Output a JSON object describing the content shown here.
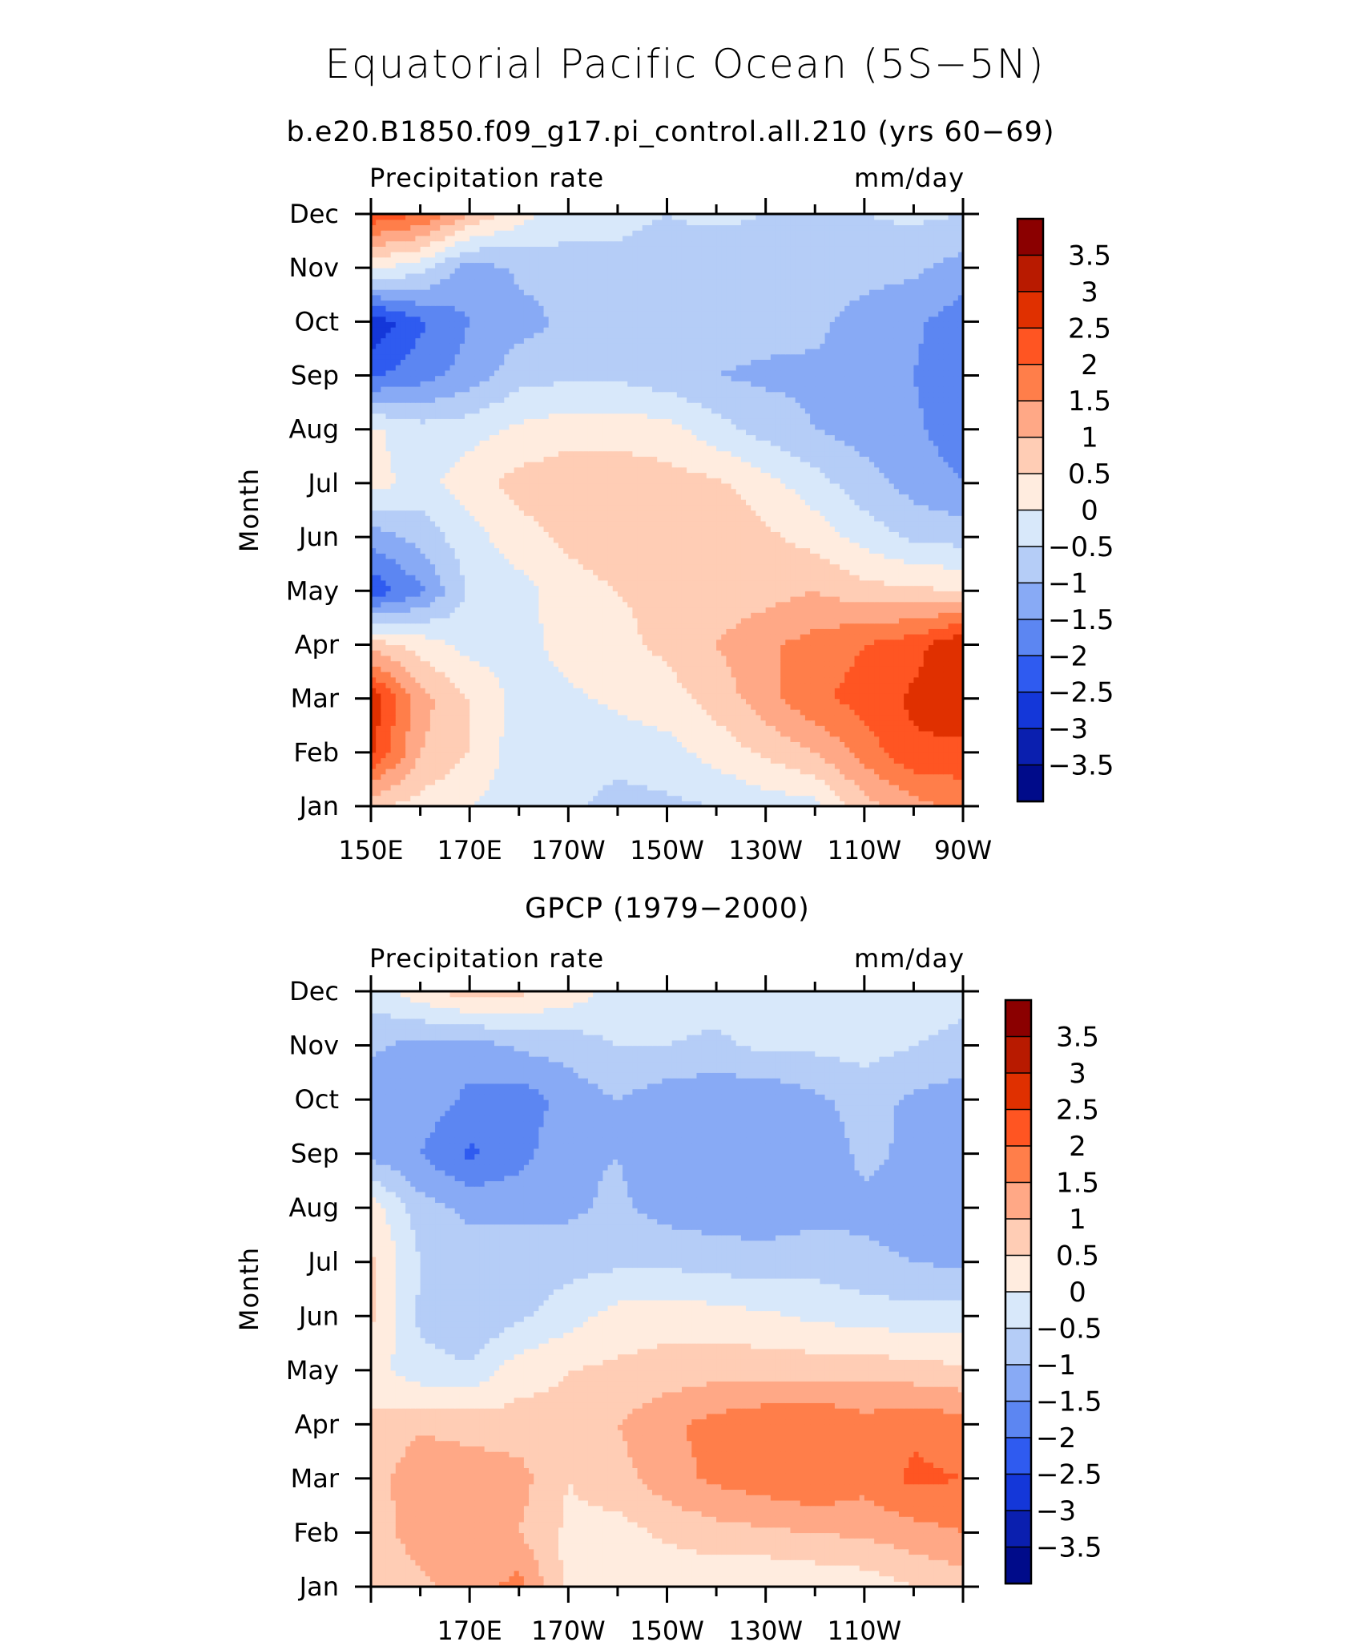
{
  "figure": {
    "title": "Equatorial Pacific Ocean (5S−5N)"
  },
  "colorbar": {
    "levels": [
      "3.5",
      "3",
      "2.5",
      "2",
      "1.5",
      "1",
      "0.5",
      "0",
      "−0.5",
      "−1",
      "−1.5",
      "−2",
      "−2.5",
      "−3",
      "−3.5"
    ],
    "colors": [
      "#8B0000",
      "#B81A00",
      "#E03000",
      "#FF5522",
      "#FF7E4A",
      "#FFA886",
      "#FFCDB5",
      "#FFECDF",
      "#D8E8FA",
      "#B5CDF7",
      "#88AAF5",
      "#5C86F2",
      "#2F5BF0",
      "#1437D9",
      "#0A1FAF",
      "#000B8A"
    ]
  },
  "chart_data": [
    {
      "type": "heatmap",
      "title": "b.e20.B1850.f09_g17.pi_control.all.210 (yrs 60−69)",
      "left_label": "Precipitation rate",
      "right_label": "mm/day",
      "ylabel": "Month",
      "x_ticks": [
        "150E",
        "170E",
        "170W",
        "150W",
        "130W",
        "110W",
        "90W"
      ],
      "y_ticks": [
        "Jan",
        "Feb",
        "Mar",
        "Apr",
        "May",
        "Jun",
        "Jul",
        "Aug",
        "Sep",
        "Oct",
        "Nov",
        "Dec"
      ],
      "xlim": [
        150,
        270
      ],
      "ylim": [
        1,
        12
      ],
      "z_grid_rows_jan_to_dec_cols_150E_to_90W_step_10deg": [
        [
          0.6,
          0.3,
          0.0,
          -0.3,
          -0.4,
          -0.7,
          -0.6,
          -0.5,
          -0.3,
          -0.2,
          0.8,
          1.3,
          1.7
        ],
        [
          2.6,
          1.0,
          0.5,
          -0.3,
          -0.3,
          -0.3,
          -0.2,
          0.2,
          0.6,
          1.0,
          1.7,
          2.4,
          2.3
        ],
        [
          2.9,
          1.2,
          0.5,
          -0.2,
          -0.1,
          0.1,
          0.3,
          0.7,
          1.3,
          1.9,
          2.2,
          2.6,
          3.0
        ],
        [
          0.8,
          0.3,
          -0.2,
          -0.2,
          0.2,
          0.4,
          0.6,
          1.0,
          1.4,
          1.7,
          2.0,
          2.3,
          3.0
        ],
        [
          -2.4,
          -1.6,
          -0.4,
          -0.2,
          0.3,
          0.5,
          0.6,
          0.7,
          0.8,
          1.0,
          0.7,
          0.6,
          0.5
        ],
        [
          -1.3,
          -0.8,
          -0.2,
          0.3,
          0.6,
          0.8,
          0.9,
          0.9,
          0.6,
          0.3,
          -0.2,
          -0.6,
          -0.7
        ],
        [
          0.2,
          -0.2,
          0.3,
          0.7,
          0.8,
          0.8,
          0.7,
          0.6,
          0.2,
          -0.3,
          -0.8,
          -1.2,
          -1.5
        ],
        [
          0.1,
          -0.3,
          -0.2,
          0.1,
          0.3,
          0.3,
          0.2,
          -0.3,
          -0.7,
          -1.0,
          -1.2,
          -1.4,
          -1.8
        ],
        [
          -2.1,
          -1.7,
          -1.3,
          -0.7,
          -0.6,
          -0.6,
          -0.8,
          -1.0,
          -1.1,
          -1.1,
          -1.1,
          -1.5,
          -1.9
        ],
        [
          -2.9,
          -2.1,
          -1.5,
          -1.2,
          -0.9,
          -0.8,
          -0.8,
          -0.8,
          -0.8,
          -0.9,
          -1.2,
          -1.4,
          -1.8
        ],
        [
          0.1,
          -0.3,
          -1.3,
          -0.9,
          -0.7,
          -0.6,
          -0.7,
          -0.8,
          -0.8,
          -0.8,
          -0.8,
          -0.9,
          -1.2
        ],
        [
          2.4,
          2.0,
          1.0,
          0.2,
          -0.3,
          -0.4,
          -0.5,
          -0.4,
          -0.5,
          -0.5,
          -0.5,
          -0.4,
          -0.5
        ]
      ]
    },
    {
      "type": "heatmap",
      "title": "GPCP (1979−2000)",
      "left_label": "Precipitation rate",
      "right_label": "mm/day",
      "ylabel": "Month",
      "x_ticks": [
        "170E",
        "170W",
        "150W",
        "130W",
        "110W"
      ],
      "y_ticks": [
        "Jan",
        "Feb",
        "Mar",
        "Apr",
        "May",
        "Jun",
        "Jul",
        "Aug",
        "Sep",
        "Oct",
        "Nov",
        "Dec"
      ],
      "xlim": [
        150,
        270
      ],
      "ylim": [
        1,
        12
      ],
      "z_grid_rows_jan_to_dec_cols_150E_to_90W_step_10deg": [
        [
          0.6,
          0.9,
          1.2,
          1.7,
          0.3,
          0.2,
          0.1,
          0.1,
          0.0,
          0.1,
          0.2,
          0.5,
          0.7
        ],
        [
          0.8,
          1.2,
          1.3,
          1.0,
          0.4,
          0.3,
          0.6,
          0.8,
          0.9,
          1.0,
          1.1,
          1.3,
          1.5
        ],
        [
          0.7,
          1.4,
          1.3,
          1.2,
          0.5,
          0.8,
          1.3,
          1.6,
          1.8,
          2.0,
          1.7,
          2.1,
          2.0
        ],
        [
          0.6,
          0.9,
          0.8,
          0.7,
          0.6,
          1.0,
          1.4,
          1.7,
          1.9,
          2.0,
          1.7,
          1.9,
          1.7
        ],
        [
          0.2,
          -0.3,
          -0.4,
          0.3,
          0.5,
          0.6,
          0.7,
          0.8,
          0.8,
          0.8,
          0.8,
          0.7,
          0.6
        ],
        [
          0.6,
          -0.6,
          -1.0,
          -0.6,
          -0.2,
          0.2,
          0.3,
          0.2,
          0.1,
          -0.1,
          -0.2,
          -0.3,
          -0.3
        ],
        [
          0.6,
          -0.5,
          -0.8,
          -0.8,
          -0.7,
          -0.6,
          -0.6,
          -0.7,
          -0.8,
          -0.7,
          -0.9,
          -1.0,
          -1.1
        ],
        [
          0.3,
          -0.8,
          -1.1,
          -1.1,
          -1.1,
          -0.9,
          -1.2,
          -1.3,
          -1.3,
          -1.2,
          -1.1,
          -1.2,
          -1.1
        ],
        [
          -1.2,
          -1.5,
          -2.1,
          -1.7,
          -1.1,
          -1.0,
          -1.4,
          -1.5,
          -1.4,
          -1.3,
          -0.9,
          -1.1,
          -1.2
        ],
        [
          -1.4,
          -1.2,
          -1.6,
          -1.8,
          -1.3,
          -1.0,
          -1.3,
          -1.4,
          -1.4,
          -1.1,
          -0.8,
          -1.1,
          -1.3
        ],
        [
          -0.9,
          -1.2,
          -1.3,
          -0.9,
          -0.8,
          -0.5,
          -0.5,
          -0.6,
          -0.4,
          -0.4,
          -0.3,
          -0.5,
          -0.6
        ],
        [
          -0.3,
          0.3,
          0.8,
          0.6,
          0.3,
          -0.2,
          -0.3,
          -0.3,
          -0.2,
          -0.3,
          -0.2,
          -0.3,
          -0.4
        ]
      ]
    }
  ]
}
